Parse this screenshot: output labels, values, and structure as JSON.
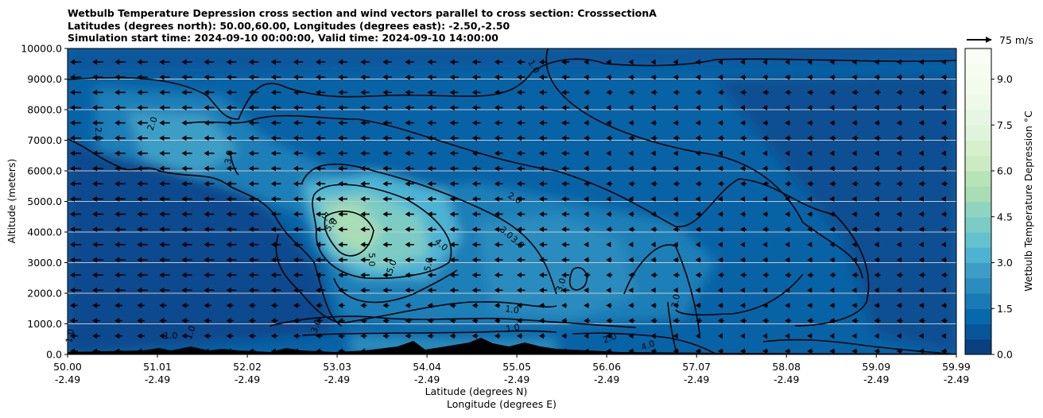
{
  "title_lines": [
    "Wetbulb Temperature Depression cross section and wind vectors parallel to cross section: CrosssectionA",
    "Latitudes (degrees north): 50.00,60.00, Longitudes (degrees east): -2.50,-2.50",
    "Simulation start time: 2024-09-10 00:00:00, Valid time: 2024-09-10 14:00:00"
  ],
  "chart_data": {
    "type": "heatmap",
    "subtype": "filled contour cross section with line contours and wind vectors",
    "xlabel": "Latitude (degrees N)",
    "xlabel2": "Longitude (degrees E)",
    "ylabel": "Altitude (meters)",
    "ylim": [
      0,
      10000
    ],
    "xlim": [
      50.0,
      59.99
    ],
    "x_ticks": [
      {
        "lat": "50.00",
        "lon": "-2.49",
        "value": 50.0
      },
      {
        "lat": "51.01",
        "lon": "-2.49",
        "value": 51.01
      },
      {
        "lat": "52.02",
        "lon": "-2.49",
        "value": 52.02
      },
      {
        "lat": "53.03",
        "lon": "-2.49",
        "value": 53.03
      },
      {
        "lat": "54.04",
        "lon": "-2.49",
        "value": 54.04
      },
      {
        "lat": "55.05",
        "lon": "-2.49",
        "value": 55.05
      },
      {
        "lat": "56.06",
        "lon": "-2.49",
        "value": 56.06
      },
      {
        "lat": "57.07",
        "lon": "-2.49",
        "value": 57.07
      },
      {
        "lat": "58.08",
        "lon": "-2.49",
        "value": 58.08
      },
      {
        "lat": "59.09",
        "lon": "-2.49",
        "value": 59.09
      },
      {
        "lat": "59.99",
        "lon": "-2.49",
        "value": 59.99
      }
    ],
    "y_ticks": [
      "0.0",
      "1000.0",
      "2000.0",
      "3000.0",
      "4000.0",
      "5000.0",
      "6000.0",
      "7000.0",
      "8000.0",
      "9000.0",
      "10000.0"
    ],
    "grid": "horizontal lines at y ticks",
    "colorbar": {
      "label": "Wetbulb Temperature Depression °C",
      "range": [
        0,
        10
      ],
      "ticks": [
        "0.0",
        "1.5",
        "3.0",
        "4.5",
        "6.0",
        "7.5",
        "9.0"
      ],
      "levels": 20,
      "colors": [
        "#084081",
        "#08559a",
        "#0868ac",
        "#1a7ab5",
        "#2b8cbe",
        "#3c9ec5",
        "#4eb3d3",
        "#63c2ce",
        "#7bccc4",
        "#8fd4c0",
        "#a8ddb5",
        "#b6e3b8",
        "#ccebc5",
        "#d6efcd",
        "#e0f3db",
        "#e7f6e2",
        "#eef9ea",
        "#f3fbee",
        "#f7fcf0",
        "#fafdf5"
      ]
    },
    "contour_labels": [
      "1.0",
      "2.0",
      "3.0",
      "4.0",
      "5.0"
    ],
    "wind_key": "75 m/s",
    "wind_direction": "mostly toward decreasing latitude (left)",
    "colors": {
      "terrain": "#000000",
      "contour": "#000000",
      "grid": "#c8c8c8"
    }
  }
}
